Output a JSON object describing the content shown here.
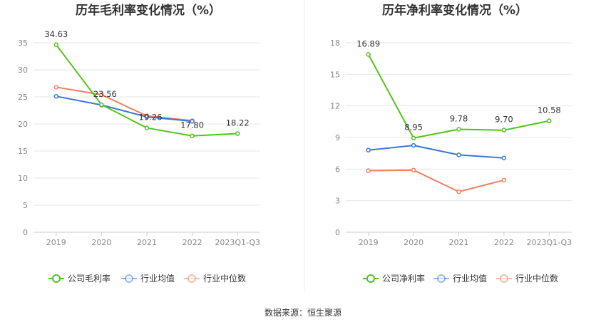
{
  "charts": [
    {
      "title": "历年毛利率变化情况（%）",
      "legend": [
        {
          "label": "公司毛利率",
          "color": "#52c41a",
          "icon": "circle-line-marker-icon"
        },
        {
          "label": "行业均值",
          "color": "#3a78d4",
          "icon": "circle-line-marker-icon"
        },
        {
          "label": "行业中位数",
          "color": "#f0815a",
          "icon": "circle-line-marker-icon"
        }
      ]
    },
    {
      "title": "历年净利率变化情况（%）",
      "legend": [
        {
          "label": "公司净利率",
          "color": "#52c41a",
          "icon": "circle-line-marker-icon"
        },
        {
          "label": "行业均值",
          "color": "#3a78d4",
          "icon": "circle-line-marker-icon"
        },
        {
          "label": "行业中位数",
          "color": "#f0815a",
          "icon": "circle-line-marker-icon"
        }
      ]
    }
  ],
  "chart_data": [
    {
      "type": "line",
      "title": "历年毛利率变化情况（%）",
      "categories": [
        "2019",
        "2020",
        "2021",
        "2022",
        "2023Q1-Q3"
      ],
      "ylim": [
        0,
        35
      ],
      "yticks": [
        0,
        5,
        10,
        15,
        20,
        25,
        30,
        35
      ],
      "grid": true,
      "legend_position": "bottom",
      "series": [
        {
          "name": "公司毛利率",
          "color": "#52c41a",
          "values": [
            34.63,
            23.56,
            19.26,
            17.8,
            18.22
          ],
          "labels": [
            "34.63",
            "23.56",
            "19.26",
            "17.80",
            "18.22"
          ]
        },
        {
          "name": "行业均值",
          "color": "#3a78d4",
          "values": [
            25.1,
            23.5,
            21.3,
            20.5,
            null
          ]
        },
        {
          "name": "行业中位数",
          "color": "#f0815a",
          "values": [
            26.8,
            25.4,
            21.5,
            20.6,
            null
          ]
        }
      ]
    },
    {
      "type": "line",
      "title": "历年净利率变化情况（%）",
      "categories": [
        "2019",
        "2020",
        "2021",
        "2022",
        "2023Q1-Q3"
      ],
      "ylim": [
        0,
        18
      ],
      "yticks": [
        0,
        3,
        6,
        9,
        12,
        15,
        18
      ],
      "grid": true,
      "legend_position": "bottom",
      "series": [
        {
          "name": "公司净利率",
          "color": "#52c41a",
          "values": [
            16.89,
            8.95,
            9.78,
            9.7,
            10.58
          ],
          "labels": [
            "16.89",
            "8.95",
            "9.78",
            "9.70",
            "10.58"
          ]
        },
        {
          "name": "行业均值",
          "color": "#3a78d4",
          "values": [
            7.8,
            8.25,
            7.35,
            7.05,
            null
          ]
        },
        {
          "name": "行业中位数",
          "color": "#f0815a",
          "values": [
            5.85,
            5.9,
            3.85,
            4.95,
            null
          ]
        }
      ]
    }
  ],
  "source": "数据来源：恒生聚源"
}
